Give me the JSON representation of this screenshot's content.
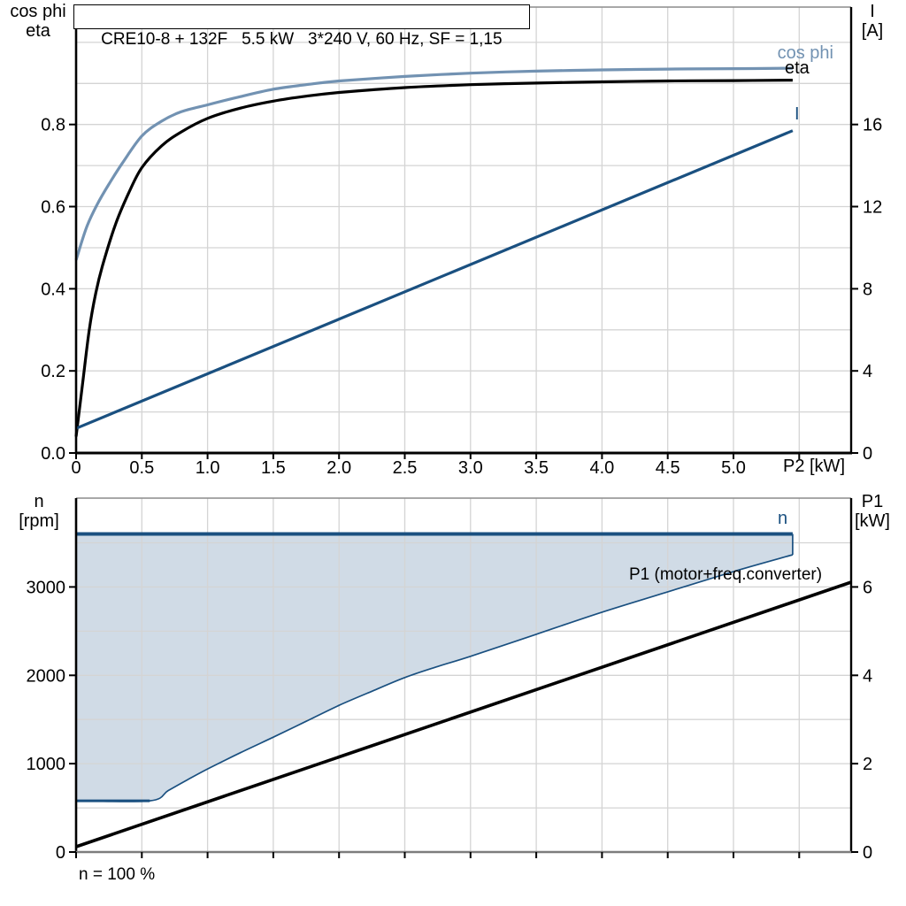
{
  "title_box": {
    "text": "CRE10-8 + 132F   5.5 kW   3*240 V, 60 Hz, SF = 1,15"
  },
  "corner_labels": {
    "top_left": [
      "cos phi",
      "eta"
    ],
    "top_right": [
      "I",
      "[A]"
    ],
    "bottom_left": [
      "n",
      "[rpm]"
    ],
    "bottom_right": [
      "P1",
      "[kW]"
    ]
  },
  "annotations": {
    "cos_phi": "cos phi",
    "eta": "eta",
    "current": "I",
    "speed": "n",
    "p1": "P1 (motor+freq.converter)",
    "x_axis_label": "P2 [kW]",
    "footnote": "n = 100 %"
  },
  "colors": {
    "steel_blue": "#7292B2",
    "dark_blue": "#1A5080",
    "black": "#000000",
    "area_fill": "#CCD8E4",
    "grid_gray": "#D4D4D4",
    "frame_gray": "#8C8C8C"
  },
  "chart_data": [
    {
      "type": "line",
      "title": "CRE10-8 + 132F   5.5 kW   3*240 V, 60 Hz, SF = 1,15",
      "xlabel": "P2 [kW]",
      "ylabel_left": "cos phi / eta",
      "ylabel_right": "I [A]",
      "x_range": [
        0,
        5.895
      ],
      "y_left_range": [
        0,
        1.086
      ],
      "y_right_range": [
        0,
        21.72
      ],
      "grid": {
        "x_step": 0.5,
        "y_step": 0.1
      },
      "x_ticks": [
        {
          "v": 0,
          "label": "0"
        },
        {
          "v": 0.5,
          "label": "0.5"
        },
        {
          "v": 1,
          "label": "1.0"
        },
        {
          "v": 1.5,
          "label": "1.5"
        },
        {
          "v": 2,
          "label": "2.0"
        },
        {
          "v": 2.5,
          "label": "2.5"
        },
        {
          "v": 3,
          "label": "3.0"
        },
        {
          "v": 3.5,
          "label": "3.5"
        },
        {
          "v": 4,
          "label": "4.0"
        },
        {
          "v": 4.5,
          "label": "4.5"
        },
        {
          "v": 5,
          "label": "5.0"
        },
        {
          "v": 5.5,
          "label": ""
        }
      ],
      "y_left_ticks": [
        {
          "v": 0,
          "label": "0.0"
        },
        {
          "v": 0.2,
          "label": "0.2"
        },
        {
          "v": 0.4,
          "label": "0.4"
        },
        {
          "v": 0.6,
          "label": "0.6"
        },
        {
          "v": 0.8,
          "label": "0.8"
        }
      ],
      "y_right_ticks": [
        {
          "v": 0,
          "label": "0"
        },
        {
          "v": 4,
          "label": "4"
        },
        {
          "v": 8,
          "label": "8"
        },
        {
          "v": 12,
          "label": "12"
        },
        {
          "v": 16,
          "label": "16"
        }
      ],
      "series": [
        {
          "name": "cos phi",
          "axis": "left",
          "color": "#7292B2",
          "width": 3.2,
          "smooth": true,
          "points": [
            [
              0,
              0.47
            ],
            [
              0.08,
              0.55
            ],
            [
              0.16,
              0.605
            ],
            [
              0.25,
              0.655
            ],
            [
              0.35,
              0.705
            ],
            [
              0.5,
              0.772
            ],
            [
              0.65,
              0.808
            ],
            [
              0.8,
              0.831
            ],
            [
              1,
              0.848
            ],
            [
              1.25,
              0.868
            ],
            [
              1.5,
              0.886
            ],
            [
              1.75,
              0.897
            ],
            [
              2,
              0.906
            ],
            [
              2.5,
              0.917
            ],
            [
              3,
              0.925
            ],
            [
              3.5,
              0.93
            ],
            [
              4,
              0.933
            ],
            [
              4.5,
              0.935
            ],
            [
              5,
              0.936
            ],
            [
              5.45,
              0.937
            ]
          ]
        },
        {
          "name": "eta",
          "axis": "left",
          "color": "#000000",
          "width": 3.2,
          "smooth": true,
          "points": [
            [
              0,
              0.04
            ],
            [
              0.05,
              0.17
            ],
            [
              0.1,
              0.3
            ],
            [
              0.15,
              0.39
            ],
            [
              0.2,
              0.455
            ],
            [
              0.3,
              0.557
            ],
            [
              0.4,
              0.633
            ],
            [
              0.5,
              0.695
            ],
            [
              0.65,
              0.748
            ],
            [
              0.8,
              0.782
            ],
            [
              1,
              0.815
            ],
            [
              1.25,
              0.84
            ],
            [
              1.5,
              0.857
            ],
            [
              1.75,
              0.869
            ],
            [
              2,
              0.878
            ],
            [
              2.5,
              0.89
            ],
            [
              3,
              0.897
            ],
            [
              3.5,
              0.901
            ],
            [
              4,
              0.904
            ],
            [
              4.5,
              0.906
            ],
            [
              5,
              0.907
            ],
            [
              5.45,
              0.908
            ]
          ]
        },
        {
          "name": "I",
          "axis": "right",
          "color": "#1A5080",
          "width": 3.2,
          "smooth": false,
          "points": [
            [
              0,
              1.2
            ],
            [
              5.45,
              15.7
            ]
          ]
        }
      ]
    },
    {
      "type": "line-area",
      "title": "",
      "xlabel": "",
      "ylabel_left": "n [rpm]",
      "ylabel_right": "P1 [kW]",
      "x_range": [
        0,
        5.895
      ],
      "y_left_range": [
        0,
        4006
      ],
      "y_right_range": [
        0,
        8.012
      ],
      "grid": {
        "x_step": 0.5,
        "y_step": 500
      },
      "x_ticks": [
        {
          "v": 0,
          "label": ""
        },
        {
          "v": 0.5,
          "label": ""
        },
        {
          "v": 1,
          "label": ""
        },
        {
          "v": 1.5,
          "label": ""
        },
        {
          "v": 2,
          "label": ""
        },
        {
          "v": 2.5,
          "label": ""
        },
        {
          "v": 3,
          "label": ""
        },
        {
          "v": 3.5,
          "label": ""
        },
        {
          "v": 4,
          "label": ""
        },
        {
          "v": 4.5,
          "label": ""
        },
        {
          "v": 5,
          "label": ""
        },
        {
          "v": 5.5,
          "label": ""
        }
      ],
      "y_left_ticks": [
        {
          "v": 0,
          "label": "0"
        },
        {
          "v": 1000,
          "label": "1000"
        },
        {
          "v": 2000,
          "label": "2000"
        },
        {
          "v": 3000,
          "label": "3000"
        }
      ],
      "y_right_ticks": [
        {
          "v": 0,
          "label": "0"
        },
        {
          "v": 2,
          "label": "2"
        },
        {
          "v": 4,
          "label": "4"
        },
        {
          "v": 6,
          "label": "6"
        }
      ],
      "area": {
        "fill": "#CCD8E4",
        "upper": [
          [
            0,
            3600
          ],
          [
            5.45,
            3600
          ]
        ],
        "lower": [
          [
            0,
            580
          ],
          [
            0.56,
            580
          ],
          [
            0.7,
            695
          ],
          [
            0.85,
            820
          ],
          [
            1,
            940
          ],
          [
            1.25,
            1125
          ],
          [
            1.5,
            1300
          ],
          [
            1.75,
            1480
          ],
          [
            2,
            1660
          ],
          [
            2.25,
            1820
          ],
          [
            2.5,
            1975
          ],
          [
            2.75,
            2100
          ],
          [
            3,
            2215
          ],
          [
            3.5,
            2465
          ],
          [
            4,
            2715
          ],
          [
            4.5,
            2945
          ],
          [
            5,
            3175
          ],
          [
            5.45,
            3365
          ]
        ]
      },
      "series": [
        {
          "name": "n 100 percent",
          "axis": "left",
          "color": "#1A5080",
          "width": 4,
          "smooth": false,
          "points": [
            [
              0,
              3600
            ],
            [
              5.45,
              3600
            ]
          ]
        },
        {
          "name": "speed lower bound",
          "axis": "left",
          "color": "#1A5080",
          "width": 1.7,
          "smooth": true,
          "points": [
            [
              0,
              580
            ],
            [
              0.56,
              580
            ],
            [
              0.7,
              695
            ],
            [
              0.85,
              820
            ],
            [
              1,
              940
            ],
            [
              1.25,
              1125
            ],
            [
              1.5,
              1300
            ],
            [
              1.75,
              1480
            ],
            [
              2,
              1660
            ],
            [
              2.25,
              1820
            ],
            [
              2.5,
              1975
            ],
            [
              2.75,
              2100
            ],
            [
              3,
              2215
            ],
            [
              3.5,
              2465
            ],
            [
              4,
              2715
            ],
            [
              4.5,
              2945
            ],
            [
              5,
              3175
            ],
            [
              5.45,
              3365
            ]
          ]
        },
        {
          "name": "min speed segment",
          "axis": "left",
          "color": "#1A5080",
          "width": 3,
          "smooth": false,
          "points": [
            [
              0,
              580
            ],
            [
              0.56,
              580
            ]
          ]
        },
        {
          "name": "speed range right edge",
          "axis": "left",
          "color": "#1A5080",
          "width": 1.7,
          "smooth": false,
          "points": [
            [
              5.45,
              3365
            ],
            [
              5.45,
              3600
            ]
          ]
        },
        {
          "name": "P1 (motor+freq.converter)",
          "axis": "right",
          "color": "#000000",
          "width": 3.6,
          "smooth": false,
          "points": [
            [
              0,
              0.12
            ],
            [
              5.895,
              6.11
            ]
          ]
        }
      ]
    }
  ]
}
